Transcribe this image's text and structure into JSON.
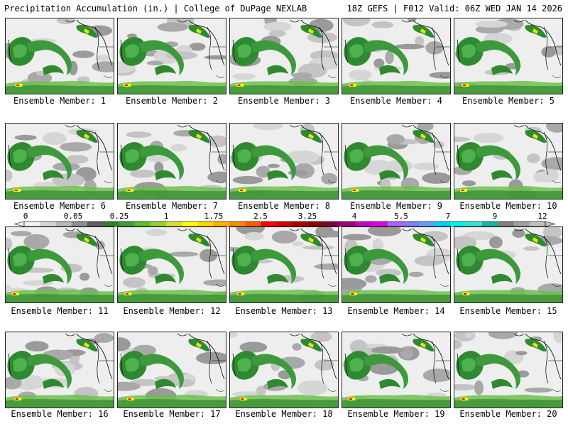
{
  "header": {
    "title": "Precipitation Accumulation (in.) | College of DuPage NEXLAB",
    "valid": "18Z GEFS | F012 Valid: 06Z WED JAN 14 2026"
  },
  "members": [
    "Ensemble Member: 1",
    "Ensemble Member: 2",
    "Ensemble Member: 3",
    "Ensemble Member: 4",
    "Ensemble Member: 5",
    "Ensemble Member: 6",
    "Ensemble Member: 7",
    "Ensemble Member: 8",
    "Ensemble Member: 9",
    "Ensemble Member: 10",
    "Ensemble Member: 11",
    "Ensemble Member: 12",
    "Ensemble Member: 13",
    "Ensemble Member: 14",
    "Ensemble Member: 15",
    "Ensemble Member: 16",
    "Ensemble Member: 17",
    "Ensemble Member: 18",
    "Ensemble Member: 19",
    "Ensemble Member: 20"
  ],
  "colorbar": {
    "labels": [
      "0",
      "0.05",
      "0.25",
      "1",
      "1.75",
      "2.5",
      "3.25",
      "4",
      "5.5",
      "7",
      "9",
      "12"
    ],
    "colors": [
      "#f2f2f2",
      "#d6d6d6",
      "#b8b8b8",
      "#8e8e8e",
      "#5f5f5f",
      "#2f7f2f",
      "#3da03d",
      "#5cbf2a",
      "#9acd32",
      "#d8e030",
      "#ffff00",
      "#ffd700",
      "#ffb000",
      "#ff8c00",
      "#ff5a00",
      "#ff0000",
      "#d40000",
      "#a80000",
      "#8b0000",
      "#800040",
      "#a0007a",
      "#c800c8",
      "#e000e0",
      "#b060ff",
      "#7f7fff",
      "#5fa0ff",
      "#00d0ff",
      "#00f0f0",
      "#40e0d0",
      "#20b2aa",
      "#808080",
      "#a0a0a0",
      "#c0c0c0"
    ]
  }
}
